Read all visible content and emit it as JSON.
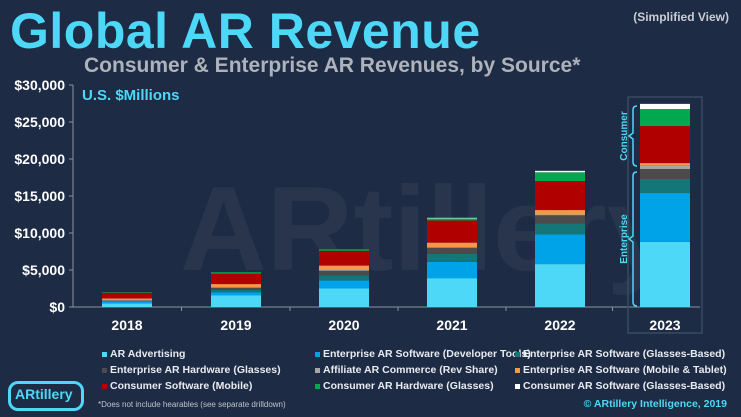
{
  "title": "Global AR Revenue",
  "view_note": "(Simplified View)",
  "footnote": "*Does not include hearables (see separate drilldown)",
  "copyright": "© ARtillery Intelligence, 2019",
  "logo_text": "ARtillery",
  "watermark": "ARtillery",
  "chart_data": {
    "type": "bar",
    "stacked": true,
    "title": "Consumer & Enterprise AR Revenues, by Source*",
    "ylabel": "U.S. $Millions",
    "xlabel": "",
    "ylim": [
      0,
      30000
    ],
    "yticks": [
      "$0",
      "$5,000",
      "$10,000",
      "$15,000",
      "$20,000",
      "$25,000",
      "$30,000"
    ],
    "categories": [
      "2018",
      "2019",
      "2020",
      "2021",
      "2022",
      "2023"
    ],
    "groups": [
      {
        "label": "Consumer",
        "series": [
          "Consumer Software (Mobile)",
          "Consumer AR Hardware (Glasses)",
          "Consumer AR Software (Glasses-Based)"
        ]
      },
      {
        "label": "Enterprise",
        "series": [
          "AR Advertising",
          "Enterprise AR Software (Developer Tools)",
          "Enterprise AR Software (Glasses-Based)",
          "Enterprise AR Hardware (Glasses)",
          "Affiliate AR Commerce (Rev Share)",
          "Enterprise AR Software (Mobile & Tablet)"
        ]
      }
    ],
    "series": [
      {
        "name": "AR Advertising",
        "color": "#4dd8f7",
        "values": [
          500,
          1600,
          2500,
          3900,
          5800,
          8800
        ]
      },
      {
        "name": "Enterprise AR Software (Developer Tools)",
        "color": "#00a3e8",
        "values": [
          300,
          400,
          1100,
          2200,
          4000,
          6600
        ]
      },
      {
        "name": "Enterprise AR Software (Glasses-Based)",
        "color": "#147676",
        "values": [
          50,
          300,
          700,
          1100,
          1500,
          1900
        ]
      },
      {
        "name": "Enterprise AR Hardware (Glasses)",
        "color": "#4b4b4b",
        "values": [
          50,
          300,
          600,
          800,
          1100,
          1350
        ]
      },
      {
        "name": "Affiliate AR Commerce (Rev Share)",
        "color": "#a6a6a6",
        "values": [
          50,
          100,
          100,
          100,
          100,
          500
        ]
      },
      {
        "name": "Enterprise AR Software (Mobile & Tablet)",
        "color": "#f79646",
        "values": [
          200,
          400,
          600,
          600,
          600,
          300
        ]
      },
      {
        "name": "Consumer Software (Mobile)",
        "color": "#b00000",
        "values": [
          800,
          1400,
          2000,
          3000,
          3900,
          5000
        ]
      },
      {
        "name": "Consumer AR Hardware (Glasses)",
        "color": "#00a94f",
        "values": [
          50,
          200,
          200,
          300,
          1200,
          2300
        ]
      },
      {
        "name": "Consumer AR Software (Glasses-Based)",
        "color": "#ffffff",
        "values": [
          0,
          0,
          0,
          50,
          200,
          700
        ]
      }
    ],
    "legend_position": "bottom"
  }
}
